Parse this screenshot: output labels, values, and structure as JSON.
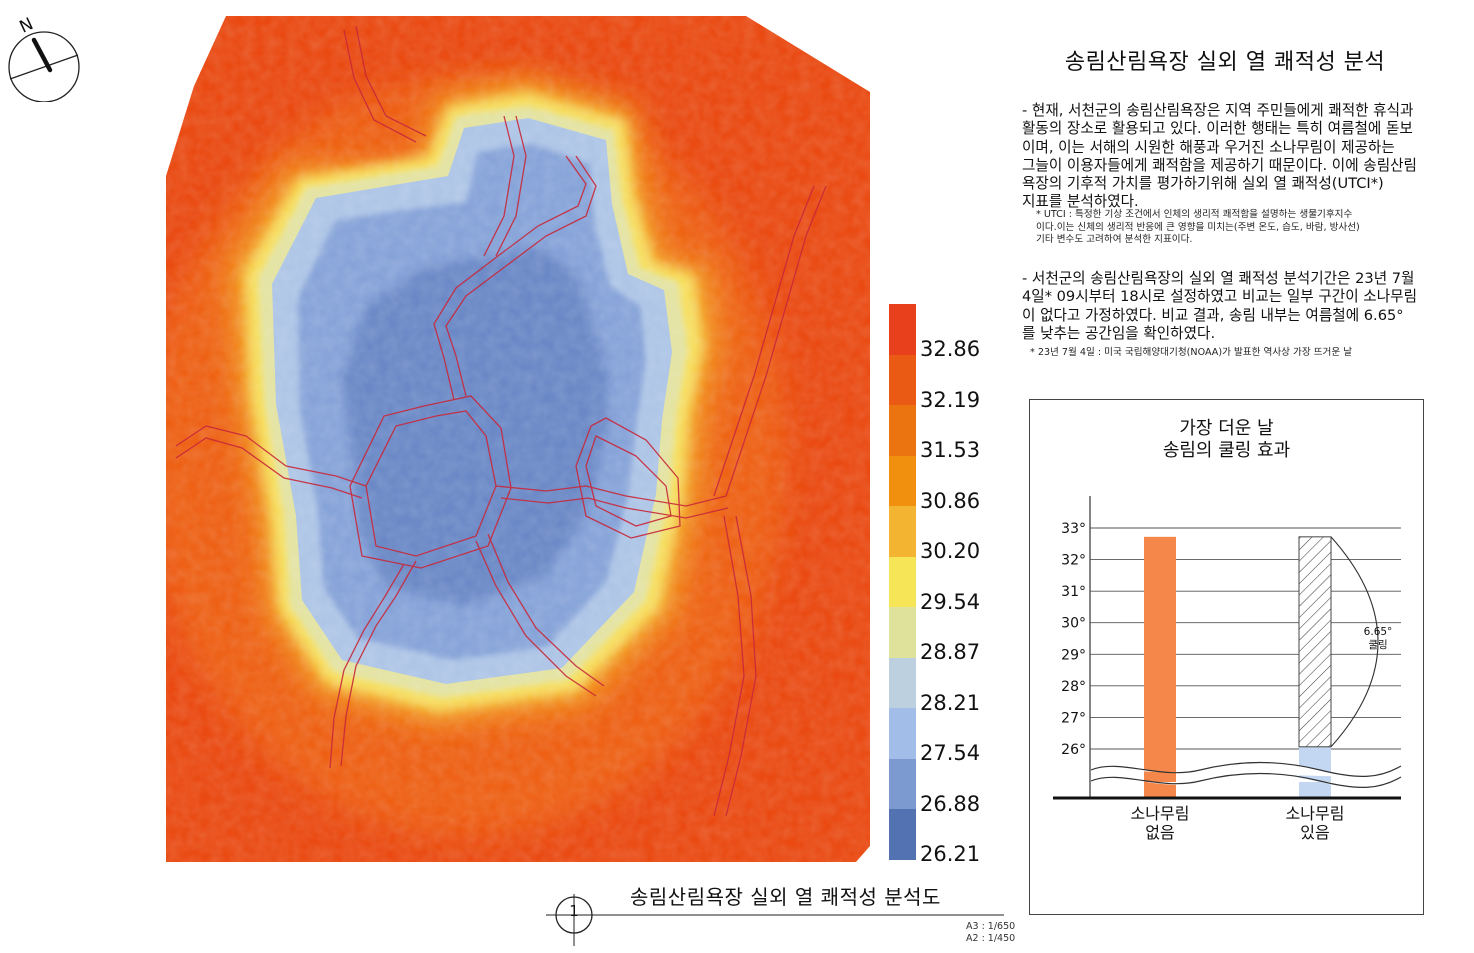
{
  "north_arrow": {
    "label": "N"
  },
  "panel": {
    "title": "송림산림욕장 실외 열 쾌적성 분석",
    "paragraph1_lines": [
      "- 현재, 서천군의 송림산림욕장은 지역 주민들에게 쾌적한 휴식과",
      "활동의 장소로 활용되고 있다. 이러한 행태는 특히 여름철에 돋보",
      "이며, 이는 서해의 시원한 해풍과 우거진 소나무림이 제공하는",
      "그늘이 이용자들에게 쾌적함을 제공하기 때문이다. 이에 송림산림",
      "욕장의 기후적 가치를 평가하기위해 실외 열 쾌적성(UTCI*)",
      "지표를 분석하였다."
    ],
    "note1_lines": [
      "* UTCI : 특정한 기상 조건에서 인체의 생리적 쾌적함을 설명하는 생물기후지수",
      "이다.이는 신체의 생리적 반응에 큰 영향을 미치는(주변 온도, 습도, 바람, 방사선)",
      "기타 변수도 고려하여 분석한 지표이다."
    ],
    "paragraph2_lines": [
      "- 서천군의 송림산림욕장의 실외 열 쾌적성 분석기간은 23년 7월",
      "4일* 09시부터 18시로 설정하였고 비교는 일부 구간이 소나무림",
      "이 없다고 가정하였다. 비교 결과, 송림 내부는 여름철에 6.65°",
      "를 낮추는 공간임을 확인하였다."
    ],
    "note2": "* 23년 7월 4일 : 미국 국립해양대기청(NOAA)가 발표한 역사상 가장 뜨거운 날"
  },
  "legend": {
    "labels": [
      "32.86",
      "32.19",
      "31.53",
      "30.86",
      "30.20",
      "29.54",
      "28.87",
      "28.21",
      "27.54",
      "26.88",
      "26.21"
    ],
    "colors": [
      "#e8401c",
      "#ea5a14",
      "#ec7410",
      "#f0900e",
      "#f3b531",
      "#f6e557",
      "#dfe29a",
      "#bcd0e0",
      "#a2bde8",
      "#7d9ad0",
      "#5272b2"
    ]
  },
  "chart_data": {
    "type": "bar",
    "title_lines": [
      "가장 더운 날",
      "송림의 쿨링 효과"
    ],
    "y_tick_labels": [
      "26°",
      "27°",
      "28°",
      "29°",
      "30°",
      "31°",
      "32°",
      "33°"
    ],
    "ylim": [
      26,
      33
    ],
    "categories": [
      [
        "소나무림",
        "없음"
      ],
      [
        "소나무림",
        "있음"
      ]
    ],
    "values": [
      32.72,
      26.07
    ],
    "reference_value": 32.72,
    "bar_colors": [
      "#f6874a",
      "#c3d6f2"
    ],
    "annotation_lines": [
      "6.65°",
      "쿨링"
    ]
  },
  "footer": {
    "drawing_number": "1",
    "title": "송림산림욕장 실외 열 쾌적성 분석도",
    "scale_a3": "A3 : 1/650",
    "scale_a2": "A2 : 1/450"
  }
}
